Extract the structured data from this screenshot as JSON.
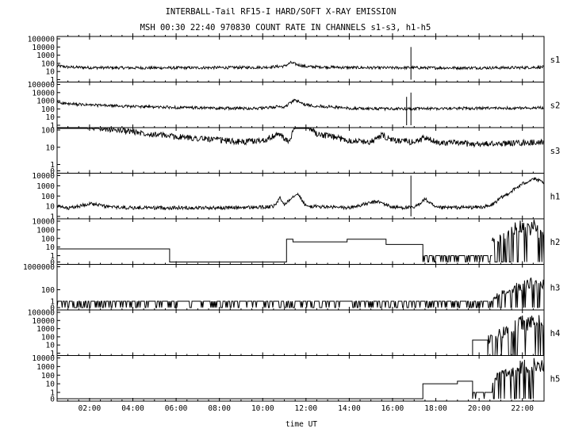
{
  "chart_data": {
    "type": "line",
    "title": "INTERBALL-Tail RF15-I HARD/SOFT X-RAY EMISSION",
    "subtitle": "MSH 00:30 22:40 970830  COUNT RATE IN CHANNELS s1-s3, h1-h5",
    "xlabel": "time UT",
    "xlim": [
      0.5,
      23.0
    ],
    "x_ticks": [
      "02:00",
      "04:00",
      "06:00",
      "08:00",
      "10:00",
      "12:00",
      "14:00",
      "16:00",
      "18:00",
      "20:00",
      "22:00"
    ],
    "grid": false,
    "panels": [
      {
        "name": "s1",
        "y_ticks": [
          "100000",
          "10000",
          "1000",
          "100",
          "10",
          "1"
        ],
        "series": [
          {
            "x": [
              0.5,
              1.0,
              2.0,
              4.0,
              6.0,
              8.0,
              10.0,
              11.0,
              11.3,
              11.6,
              12.0,
              14.0,
              16.0,
              16.8,
              17.5,
              20.0,
              22.0,
              23.0
            ],
            "y": [
              50,
              35,
              30,
              28,
              28,
              30,
              32,
              45,
              120,
              70,
              40,
              30,
              28,
              30,
              28,
              28,
              30,
              35
            ]
          }
        ],
        "spikes": [
          {
            "x": 16.85,
            "y": 10000
          }
        ]
      },
      {
        "name": "s2",
        "y_ticks": [
          "100000",
          "10000",
          "1000",
          "100",
          "10",
          "1"
        ],
        "series": [
          {
            "x": [
              0.5,
              1.0,
              2.0,
              4.0,
              6.0,
              8.0,
              10.0,
              10.8,
              11.0,
              11.2,
              11.5,
              12.0,
              14.0,
              16.0,
              17.5,
              20.0,
              22.0,
              23.0
            ],
            "y": [
              700,
              400,
              300,
              200,
              150,
              120,
              120,
              200,
              150,
              400,
              1200,
              300,
              120,
              100,
              110,
              120,
              130,
              150
            ]
          }
        ],
        "spikes": [
          {
            "x": 16.65,
            "y": 3000
          },
          {
            "x": 16.85,
            "y": 10000
          }
        ]
      },
      {
        "name": "s3",
        "y_ticks": [
          "100",
          "10",
          "1",
          "0"
        ],
        "series": [
          {
            "x": [
              0.5,
              1.0,
              2.0,
              4.0,
              6.0,
              7.5,
              9.0,
              10.0,
              10.8,
              11.0,
              11.2,
              11.5,
              11.8,
              12.5,
              14.0,
              15.0,
              15.5,
              16.0,
              17.0,
              17.5,
              18.0,
              20.0,
              22.0,
              23.0
            ],
            "y": [
              500,
              300,
              150,
              80,
              40,
              30,
              20,
              25,
              60,
              30,
              20,
              150,
              400,
              60,
              25,
              20,
              50,
              25,
              20,
              35,
              20,
              15,
              18,
              20
            ]
          }
        ]
      },
      {
        "name": "h1",
        "y_ticks": [
          "10000",
          "1000",
          "100",
          "10",
          "1"
        ],
        "series": [
          {
            "x": [
              0.5,
              1.0,
              1.5,
              2.0,
              3.0,
              4.0,
              5.0,
              6.0,
              8.0,
              10.0,
              10.5,
              10.8,
              11.0,
              11.3,
              11.6,
              12.0,
              14.0,
              15.3,
              16.0,
              17.0,
              17.5,
              18.0,
              20.0,
              20.5,
              21.0,
              21.5,
              22.0,
              22.5,
              23.0
            ],
            "y": [
              10,
              6,
              10,
              18,
              8,
              7,
              7,
              7,
              7,
              8,
              9,
              60,
              15,
              60,
              200,
              10,
              7,
              30,
              8,
              7,
              50,
              7,
              8,
              10,
              60,
              300,
              1500,
              5000,
              2000
            ]
          }
        ],
        "spikes": [
          {
            "x": 16.85,
            "y": 10000
          }
        ]
      },
      {
        "name": "h2",
        "y_ticks": [
          "10000",
          "1000",
          "100",
          "10",
          "1",
          "0"
        ],
        "series": [
          {
            "x": [
              0.5,
              5.7,
              5.7,
              11.1,
              11.1,
              11.4,
              11.4,
              13.9,
              13.9,
              15.7,
              15.7,
              17.4,
              17.4,
              20.6
            ],
            "y": [
              6,
              6,
              0,
              0,
              80,
              80,
              40,
              40,
              80,
              80,
              20,
              20,
              0,
              0
            ]
          },
          {
            "x": [
              20.6,
              21.0,
              21.3,
              21.6,
              22.0,
              22.3,
              22.6,
              23.0
            ],
            "y": [
              50,
              200,
              1000,
              2000,
              5000,
              3000,
              8000,
              2000
            ]
          }
        ]
      },
      {
        "name": "h3",
        "y_ticks": [
          "1000000",
          "100",
          "1",
          "0"
        ],
        "series": [
          {
            "x": [
              0.5,
              20.6,
              20.8,
              21.0,
              21.3,
              21.6,
              22.0,
              22.3,
              22.6,
              23.0
            ],
            "y": [
              0,
              0,
              5,
              20,
              100,
              200,
              1000,
              3000,
              5000,
              3000
            ]
          }
        ]
      },
      {
        "name": "h4",
        "y_ticks": [
          "100000",
          "10000",
          "1000",
          "100",
          "10",
          "1"
        ],
        "series": [
          {
            "x": [
              0.5,
              19.7,
              19.7,
              20.4,
              20.4,
              20.8,
              21.0,
              21.3,
              21.6,
              22.0,
              22.3,
              22.6,
              23.0
            ],
            "y": [
              0,
              0,
              40,
              40,
              0,
              100,
              500,
              1000,
              5000,
              20000,
              30000,
              50000,
              30000
            ]
          }
        ]
      },
      {
        "name": "h5",
        "y_ticks": [
          "10000",
          "1000",
          "100",
          "10",
          "1",
          "0"
        ],
        "series": [
          {
            "x": [
              0.5,
              17.4,
              17.4,
              19.0,
              19.0,
              19.7,
              19.7,
              20.6,
              20.8,
              21.0,
              21.3,
              21.6,
              22.0,
              22.3,
              22.6,
              23.0
            ],
            "y": [
              0,
              0,
              10,
              10,
              20,
              20,
              0,
              0,
              50,
              200,
              500,
              1000,
              3000,
              5000,
              8000,
              3000
            ]
          }
        ]
      }
    ]
  }
}
